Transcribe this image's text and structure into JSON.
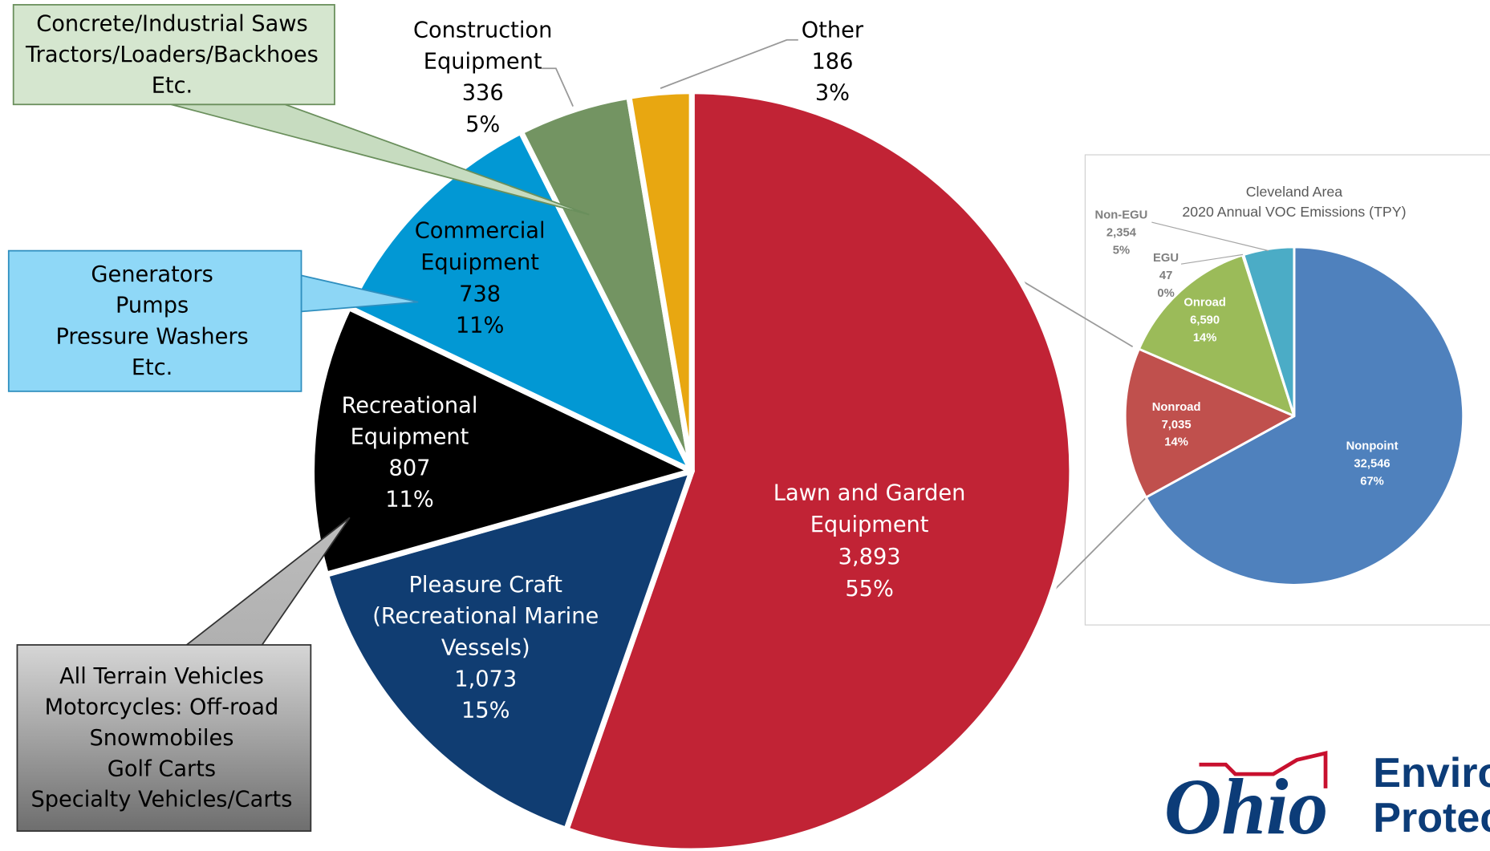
{
  "chart_data": [
    {
      "type": "pie",
      "categories": [
        [
          "Lawn and Garden",
          "Equipment"
        ],
        [
          "Pleasure Craft",
          "(Recreational Marine",
          "Vessels)"
        ],
        [
          "Recreational",
          "Equipment"
        ],
        [
          "Commercial",
          "Equipment"
        ],
        [
          "Construction",
          "Equipment"
        ],
        [
          "Other"
        ]
      ],
      "values": [
        3893,
        1073,
        807,
        738,
        336,
        186
      ],
      "value_labels": [
        "3,893",
        "1,073",
        "807",
        "738",
        "336",
        "186"
      ],
      "percent_labels": [
        "55%",
        "15%",
        "11%",
        "11%",
        "5%",
        "3%"
      ],
      "colors": [
        "#c12335",
        "#103d72",
        "#000000",
        "#0298d4",
        "#739462",
        "#e8a711"
      ]
    },
    {
      "type": "pie",
      "title": [
        "Cleveland Area",
        "2020 Annual VOC Emissions (TPY)"
      ],
      "categories": [
        "Nonpoint",
        "Nonroad",
        "Onroad",
        "EGU",
        "Non-EGU"
      ],
      "values": [
        32546,
        7035,
        6590,
        47,
        2354
      ],
      "value_labels": [
        "32,546",
        "7,035",
        "6,590",
        "47",
        "2,354"
      ],
      "percent_labels": [
        "67%",
        "14%",
        "14%",
        "0%",
        "5%"
      ],
      "colors": [
        "#4f81bd",
        "#c0504d",
        "#9bbb59",
        "#8064a2",
        "#4bacc6"
      ]
    }
  ],
  "callouts": [
    [
      "Concrete/Industrial Saws",
      "Tractors/Loaders/Backhoes",
      "Etc."
    ],
    [
      "Generators",
      "Pumps",
      "Pressure Washers",
      "Etc."
    ],
    [
      "All Terrain Vehicles",
      "Motorcycles: Off-road",
      "Snowmobiles",
      "Golf Carts",
      "Specialty Vehicles/Carts"
    ]
  ],
  "logo": {
    "mark": "Ohio",
    "lines": [
      "Environmental",
      "Protection"
    ]
  }
}
